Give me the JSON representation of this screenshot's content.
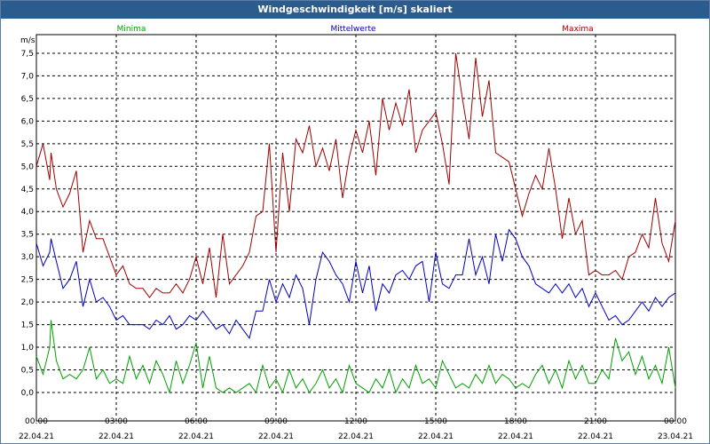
{
  "window": {
    "title": "Windgeschwindigkeit [m/s] skaliert"
  },
  "chart_data": {
    "type": "line",
    "ylabel": "m/s",
    "ylim": [
      -0.3,
      7.8
    ],
    "xlim": [
      0,
      24
    ],
    "grid": true,
    "legend_placement": "top",
    "yticks": [
      "0,0",
      "0,5",
      "1,0",
      "1,5",
      "2,0",
      "2,5",
      "3,0",
      "3,5",
      "4,0",
      "4,5",
      "5,0",
      "5,5",
      "6,0",
      "6,5",
      "7,0",
      "7,5"
    ],
    "ytick_values": [
      0,
      0.5,
      1,
      1.5,
      2,
      2.5,
      3,
      3.5,
      4,
      4.5,
      5,
      5.5,
      6,
      6.5,
      7,
      7.5
    ],
    "xticks": [
      {
        "time": "00:00",
        "date": "22.04.21"
      },
      {
        "time": "03:00",
        "date": "22.04.21"
      },
      {
        "time": "06:00",
        "date": "22.04.21"
      },
      {
        "time": "09:00",
        "date": "22.04.21"
      },
      {
        "time": "12:00",
        "date": "22.04.21"
      },
      {
        "time": "15:00",
        "date": "22.04.21"
      },
      {
        "time": "18:00",
        "date": "22.04.21"
      },
      {
        "time": "21:00",
        "date": "22.04.21"
      },
      {
        "time": "00:00",
        "date": "23.04.21"
      }
    ],
    "xtick_hours": [
      0,
      3,
      6,
      9,
      12,
      15,
      18,
      21,
      24
    ],
    "series": [
      {
        "name": "Minima",
        "color": "#00a000",
        "x": [
          0,
          0.25,
          0.5,
          0.55,
          0.75,
          1,
          1.25,
          1.5,
          1.75,
          2,
          2.25,
          2.5,
          2.75,
          3,
          3.25,
          3.5,
          3.75,
          4,
          4.25,
          4.5,
          4.75,
          5,
          5.25,
          5.5,
          5.75,
          6,
          6.25,
          6.5,
          6.75,
          7,
          7.25,
          7.5,
          7.75,
          8,
          8.25,
          8.5,
          8.75,
          9,
          9.25,
          9.5,
          9.75,
          10,
          10.25,
          10.5,
          10.75,
          11,
          11.25,
          11.5,
          11.75,
          12,
          12.25,
          12.5,
          12.75,
          13,
          13.25,
          13.5,
          13.75,
          14,
          14.25,
          14.5,
          14.75,
          15,
          15.25,
          15.5,
          15.75,
          16,
          16.25,
          16.5,
          16.75,
          17,
          17.25,
          17.5,
          17.75,
          18,
          18.25,
          18.5,
          18.75,
          19,
          19.25,
          19.5,
          19.75,
          20,
          20.25,
          20.5,
          20.75,
          21,
          21.25,
          21.5,
          21.75,
          22,
          22.25,
          22.5,
          22.75,
          23,
          23.25,
          23.5,
          23.75,
          24
        ],
        "values": [
          0.8,
          0.4,
          1.0,
          1.6,
          0.7,
          0.3,
          0.4,
          0.3,
          0.5,
          1.0,
          0.3,
          0.5,
          0.2,
          0.3,
          0.2,
          0.8,
          0.3,
          0.6,
          0.2,
          0.7,
          0.4,
          0.0,
          0.7,
          0.2,
          0.6,
          1.1,
          0.1,
          0.8,
          0.1,
          0.0,
          0.1,
          0.0,
          0.1,
          0.2,
          0.0,
          0.6,
          0.1,
          0.3,
          0.0,
          0.5,
          0.1,
          0.3,
          0.0,
          0.2,
          0.5,
          0.1,
          0.3,
          0.0,
          0.6,
          0.2,
          0.1,
          0.0,
          0.3,
          0.1,
          0.5,
          0.0,
          0.3,
          0.1,
          0.6,
          0.2,
          0.3,
          0.1,
          0.7,
          0.4,
          0.1,
          0.2,
          0.1,
          0.4,
          0.2,
          0.6,
          0.2,
          0.4,
          0.3,
          0.1,
          0.2,
          0.1,
          0.4,
          0.6,
          0.2,
          0.5,
          0.1,
          0.7,
          0.3,
          0.6,
          0.2,
          0.2,
          0.5,
          0.3,
          1.2,
          0.7,
          0.9,
          0.4,
          0.8,
          0.3,
          0.6,
          0.2,
          1.0,
          0.1
        ],
        "smooth": false
      },
      {
        "name": "Mittelwerte",
        "color": "#0000c0",
        "x": [
          0,
          0.25,
          0.5,
          0.55,
          0.75,
          1,
          1.25,
          1.5,
          1.75,
          2,
          2.25,
          2.5,
          2.75,
          3,
          3.25,
          3.5,
          3.75,
          4,
          4.25,
          4.5,
          4.75,
          5,
          5.25,
          5.5,
          5.75,
          6,
          6.25,
          6.5,
          6.75,
          7,
          7.25,
          7.5,
          7.75,
          8,
          8.25,
          8.5,
          8.75,
          9,
          9.25,
          9.5,
          9.75,
          10,
          10.25,
          10.5,
          10.75,
          11,
          11.25,
          11.5,
          11.75,
          12,
          12.25,
          12.5,
          12.75,
          13,
          13.25,
          13.5,
          13.75,
          14,
          14.25,
          14.5,
          14.75,
          15,
          15.25,
          15.5,
          15.75,
          16,
          16.25,
          16.5,
          16.75,
          17,
          17.25,
          17.5,
          17.75,
          18,
          18.25,
          18.5,
          18.75,
          19,
          19.25,
          19.5,
          19.75,
          20,
          20.25,
          20.5,
          20.75,
          21,
          21.25,
          21.5,
          21.75,
          22,
          22.25,
          22.5,
          22.75,
          23,
          23.25,
          23.5,
          23.75,
          24
        ],
        "values": [
          3.3,
          2.8,
          3.1,
          3.4,
          2.9,
          2.3,
          2.5,
          2.9,
          1.9,
          2.5,
          2.0,
          2.1,
          1.9,
          1.6,
          1.7,
          1.5,
          1.5,
          1.5,
          1.4,
          1.6,
          1.5,
          1.7,
          1.4,
          1.5,
          1.7,
          1.6,
          1.8,
          1.6,
          1.4,
          1.5,
          1.3,
          1.6,
          1.4,
          1.2,
          1.8,
          1.8,
          2.5,
          2.0,
          2.4,
          2.1,
          2.6,
          2.3,
          1.5,
          2.5,
          3.1,
          2.9,
          2.6,
          2.4,
          2.0,
          2.9,
          2.2,
          2.8,
          1.8,
          2.4,
          2.2,
          2.6,
          2.7,
          2.5,
          2.8,
          2.9,
          2.0,
          3.1,
          2.4,
          2.3,
          2.6,
          2.6,
          3.4,
          2.6,
          3.0,
          2.4,
          3.5,
          2.9,
          3.6,
          3.4,
          3.0,
          2.8,
          2.4,
          2.3,
          2.2,
          2.4,
          2.2,
          2.4,
          2.1,
          2.3,
          1.9,
          2.2,
          1.9,
          1.6,
          1.7,
          1.5,
          1.6,
          1.8,
          2.0,
          1.8,
          2.1,
          1.9,
          2.1,
          2.2
        ],
        "smooth": false
      },
      {
        "name": "Maxima",
        "color": "#a00000",
        "x": [
          0,
          0.25,
          0.5,
          0.55,
          0.75,
          1,
          1.25,
          1.5,
          1.75,
          2,
          2.25,
          2.5,
          2.75,
          3,
          3.25,
          3.5,
          3.75,
          4,
          4.25,
          4.5,
          4.75,
          5,
          5.25,
          5.5,
          5.75,
          6,
          6.25,
          6.5,
          6.75,
          7,
          7.25,
          7.5,
          7.75,
          8,
          8.25,
          8.5,
          8.75,
          9,
          9.25,
          9.5,
          9.75,
          10,
          10.25,
          10.5,
          10.75,
          11,
          11.25,
          11.5,
          11.75,
          12,
          12.25,
          12.5,
          12.75,
          13,
          13.25,
          13.5,
          13.75,
          14,
          14.25,
          14.5,
          14.75,
          15,
          15.25,
          15.5,
          15.75,
          16,
          16.25,
          16.5,
          16.75,
          17,
          17.25,
          17.5,
          17.75,
          18,
          18.25,
          18.5,
          18.75,
          19,
          19.25,
          19.5,
          19.75,
          20,
          20.25,
          20.5,
          20.75,
          21,
          21.25,
          21.5,
          21.75,
          22,
          22.25,
          22.5,
          22.75,
          23,
          23.25,
          23.5,
          23.75,
          24
        ],
        "values": [
          5.0,
          5.5,
          4.7,
          5.3,
          4.5,
          4.1,
          4.4,
          4.9,
          3.1,
          3.8,
          3.4,
          3.4,
          3.0,
          2.6,
          2.8,
          2.4,
          2.3,
          2.3,
          2.1,
          2.3,
          2.2,
          2.2,
          2.4,
          2.2,
          2.5,
          3.0,
          2.4,
          3.2,
          2.1,
          3.5,
          2.4,
          2.6,
          2.8,
          3.1,
          3.9,
          4.0,
          5.5,
          3.1,
          5.3,
          4.0,
          5.6,
          5.3,
          5.9,
          5.0,
          5.4,
          4.9,
          5.6,
          4.3,
          5.2,
          5.8,
          5.3,
          6.0,
          4.8,
          6.5,
          5.8,
          6.4,
          5.9,
          6.7,
          5.3,
          5.8,
          6.0,
          6.2,
          5.5,
          4.6,
          7.5,
          6.5,
          5.6,
          7.4,
          6.1,
          6.9,
          5.3,
          5.2,
          5.1,
          4.5,
          3.9,
          4.4,
          4.8,
          4.5,
          5.4,
          4.5,
          3.4,
          4.3,
          3.5,
          3.8,
          2.6,
          2.7,
          2.6,
          2.6,
          2.7,
          2.5,
          3.0,
          3.1,
          3.5,
          3.2,
          4.3,
          3.3,
          2.9,
          3.8
        ],
        "smooth": false
      }
    ]
  }
}
